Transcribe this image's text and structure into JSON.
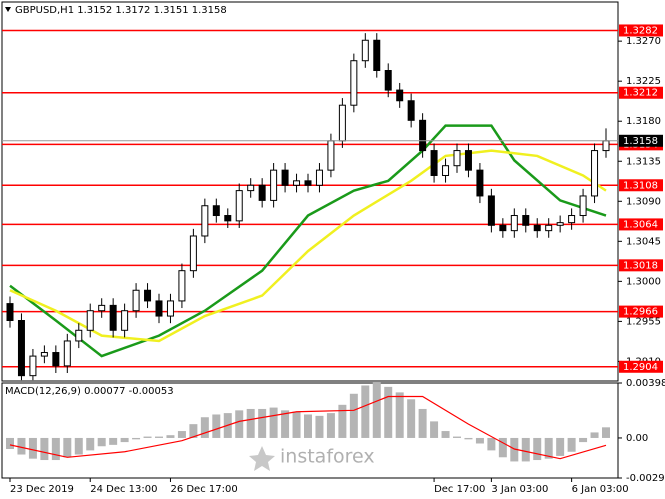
{
  "header": "GBPUSD,H1 1.3152 1.3172 1.3151 1.3158",
  "watermark": "instaforex",
  "chart_data": [
    {
      "type": "candlestick",
      "open": [
        1.2975,
        1.2956,
        1.2894,
        1.2916,
        1.292,
        1.2905,
        1.2933,
        1.2945,
        1.2967,
        1.2973,
        1.2945,
        1.2967,
        1.299,
        1.2978,
        1.2961,
        1.2978,
        1.3012,
        1.3051,
        1.3085,
        1.3074,
        1.3068,
        1.3102,
        1.3108,
        1.3091,
        1.3125,
        1.3108,
        1.3113,
        1.3108,
        1.3125,
        1.3158,
        1.3198,
        1.3248,
        1.3271,
        1.3237,
        1.3215,
        1.3203,
        1.3181,
        1.3147,
        1.3119,
        1.313,
        1.3147,
        1.3125,
        1.3096,
        1.3063,
        1.3057,
        1.3074,
        1.3063,
        1.3057,
        1.3063,
        1.3066,
        1.3074,
        1.3096,
        1.3147
      ],
      "high": [
        1.2983,
        1.2964,
        1.2924,
        1.2928,
        1.2928,
        1.2941,
        1.2953,
        1.2975,
        1.2981,
        1.2981,
        1.2975,
        1.2998,
        1.2998,
        1.2986,
        1.2986,
        1.302,
        1.3059,
        1.3093,
        1.3093,
        1.3082,
        1.311,
        1.3116,
        1.3116,
        1.3133,
        1.3133,
        1.3121,
        1.3121,
        1.3133,
        1.3166,
        1.3206,
        1.3256,
        1.3279,
        1.3279,
        1.3245,
        1.3223,
        1.3211,
        1.3189,
        1.3155,
        1.3138,
        1.3155,
        1.3155,
        1.3133,
        1.3104,
        1.3071,
        1.3082,
        1.3082,
        1.3071,
        1.3071,
        1.3074,
        1.3082,
        1.3104,
        1.3155,
        1.3172
      ],
      "low": [
        1.2948,
        1.2889,
        1.2889,
        1.2908,
        1.2897,
        1.2897,
        1.2925,
        1.2937,
        1.2959,
        1.2937,
        1.2937,
        1.2959,
        1.297,
        1.2953,
        1.2953,
        1.297,
        1.3004,
        1.3043,
        1.3066,
        1.306,
        1.306,
        1.3094,
        1.3083,
        1.3083,
        1.31,
        1.31,
        1.31,
        1.31,
        1.3117,
        1.315,
        1.319,
        1.324,
        1.3229,
        1.3207,
        1.3195,
        1.3173,
        1.3139,
        1.3111,
        1.3111,
        1.3122,
        1.3117,
        1.3088,
        1.3055,
        1.3049,
        1.3049,
        1.3055,
        1.3049,
        1.3049,
        1.3055,
        1.3058,
        1.3066,
        1.3088,
        1.3139
      ],
      "close": [
        1.2956,
        1.2894,
        1.2916,
        1.292,
        1.2905,
        1.2933,
        1.2945,
        1.2967,
        1.2973,
        1.2945,
        1.2967,
        1.299,
        1.2978,
        1.2961,
        1.2978,
        1.3012,
        1.3051,
        1.3085,
        1.3074,
        1.3068,
        1.3102,
        1.3108,
        1.3091,
        1.3125,
        1.3108,
        1.3113,
        1.3108,
        1.3125,
        1.3158,
        1.3198,
        1.3248,
        1.3271,
        1.3237,
        1.3215,
        1.3203,
        1.3181,
        1.3147,
        1.3119,
        1.313,
        1.3147,
        1.3125,
        1.3096,
        1.3063,
        1.3057,
        1.3074,
        1.3063,
        1.3057,
        1.3063,
        1.3066,
        1.3074,
        1.3096,
        1.3147,
        1.3158
      ],
      "ylim": [
        1.2888,
        1.3314
      ],
      "yticks": [
        {
          "value": 1.327,
          "label": "1.3270"
        },
        1.3225,
        {
          "value": 1.318,
          "label": "1.3180"
        },
        1.3135,
        {
          "value": 1.309,
          "label": "1.3090"
        },
        1.3045,
        {
          "value": 1.3,
          "label": "1.3000"
        },
        1.2955,
        {
          "value": 1.291,
          "label": "1.2910"
        }
      ],
      "levels": [
        1.3282,
        1.3212,
        1.3154,
        1.3108,
        1.3064,
        1.3018,
        1.2966,
        1.2904
      ],
      "level_color": "#ff0000",
      "current_price": 1.3158,
      "xticks": [
        {
          "value": 0,
          "label": "23 Dec 2019"
        },
        {
          "value": 7,
          "label": "24 Dec 13:00"
        },
        {
          "value": 14,
          "label": "26 Dec 17:00"
        },
        {
          "value": 37,
          "label": "Dec 17:00"
        },
        {
          "value": 42,
          "label": "3 Jan 03:00"
        },
        {
          "value": 49,
          "label": "6 Jan 03:00"
        }
      ],
      "lines": [
        {
          "color": "#1a9a1a",
          "x": [
            0,
            4,
            8,
            13,
            17,
            22,
            26,
            30,
            33,
            36,
            38,
            42,
            44,
            48,
            52
          ],
          "values": [
            1.2995,
            1.2956,
            1.2916,
            1.2939,
            1.2967,
            1.3012,
            1.3074,
            1.3102,
            1.3113,
            1.3147,
            1.3175,
            1.3175,
            1.3136,
            1.3091,
            1.3074
          ]
        },
        {
          "color": "#f0f020",
          "x": [
            0,
            4,
            8,
            13,
            17,
            22,
            26,
            30,
            35,
            38,
            42,
            46,
            50,
            52
          ],
          "values": [
            1.299,
            1.2967,
            1.2939,
            1.2933,
            1.2961,
            1.2984,
            1.3034,
            1.3074,
            1.3113,
            1.3141,
            1.3147,
            1.3141,
            1.3119,
            1.3102
          ]
        }
      ]
    },
    {
      "type": "macd",
      "label": "MACD(12,26,9) 0.00077 -0.00053",
      "color": "#b4b4b4",
      "values": [
        -0.0008,
        -0.0012,
        -0.0015,
        -0.0016,
        -0.0016,
        -0.0014,
        -0.0012,
        -0.0009,
        -0.0006,
        -0.0005,
        -0.0003,
        -0.0001,
        0.0001,
        0.0001,
        0.0002,
        0.0005,
        0.001,
        0.0015,
        0.0017,
        0.0018,
        0.002,
        0.0021,
        0.0021,
        0.0022,
        0.002,
        0.0019,
        0.0017,
        0.0016,
        0.0018,
        0.0024,
        0.0032,
        0.0038,
        0.004,
        0.0037,
        0.0033,
        0.0028,
        0.0021,
        0.0012,
        0.0005,
        0.0001,
        -0.0001,
        -0.0004,
        -0.0009,
        -0.0014,
        -0.0017,
        -0.0017,
        -0.0016,
        -0.0015,
        -0.0013,
        -0.001,
        -0.0003,
        0.0004,
        0.00077
      ],
      "signal": {
        "color": "#ff0000",
        "x": [
          0,
          5,
          10,
          15,
          20,
          25,
          30,
          33,
          36,
          40,
          44,
          48,
          52
        ],
        "values": [
          -0.0005,
          -0.0014,
          -0.001,
          -0.0002,
          0.0012,
          0.0019,
          0.002,
          0.003,
          0.003,
          0.001,
          -0.0008,
          -0.0015,
          -0.00053
        ]
      },
      "ylim": [
        -0.0029,
        0.00398
      ],
      "yticks": [
        0.00398,
        {
          "value": 0,
          "label": "0.00"
        },
        -0.0029
      ]
    }
  ]
}
